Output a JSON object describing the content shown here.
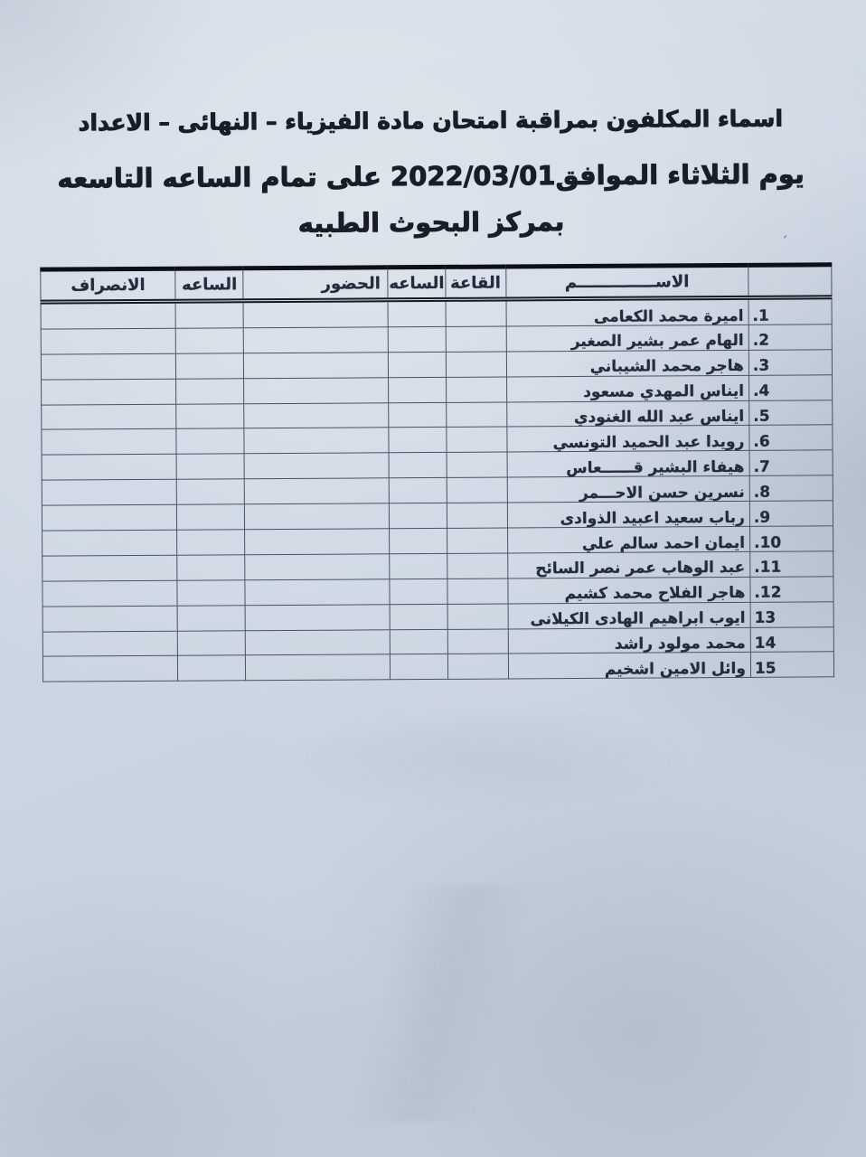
{
  "document": {
    "title_lines": [
      "اسماء المكلفون بمراقبة امتحان مادة الفيزياء – النهائى – الاعداد",
      "يوم الثلاثاء  الموافق2022/03/01 على تمام الساعه التاسعه",
      "بمركز البحوث الطبيه"
    ]
  },
  "table": {
    "headers": {
      "number": "",
      "name": "الاســــــــــــــم",
      "hall": "القاعة",
      "hour_in": "الساعه",
      "attendance": "الحضور",
      "hour_out": "الساعه",
      "departure": "الانصراف"
    },
    "rows": [
      {
        "num": "1.",
        "name": "اميرة محمد الكعامى"
      },
      {
        "num": "2.",
        "name": "الهام عمر بشير الصغير"
      },
      {
        "num": "3.",
        "name": "هاجر محمد الشيباني"
      },
      {
        "num": "4.",
        "name": "ايناس المهدي مسعود"
      },
      {
        "num": "5.",
        "name": "ايناس عبد الله الغنودي"
      },
      {
        "num": "6.",
        "name": "رويدا عبد الحميد التونسي"
      },
      {
        "num": "7.",
        "name": "هيفاء البشير قــــــعاس"
      },
      {
        "num": "8.",
        "name": "نسرين حسن الاحـــمر"
      },
      {
        "num": "9.",
        "name": "رباب سعيد اعبيد الذوادى"
      },
      {
        "num": "10.",
        "name": "ايمان احمد سالم علي"
      },
      {
        "num": "11.",
        "name": "عبد الوهاب عمر نصر السائح"
      },
      {
        "num": "12.",
        "name": "هاجر الفلاح محمد كشيم"
      },
      {
        "num": "13",
        "name": "ايوب ابراهيم الهادى الكيلانى"
      },
      {
        "num": "14",
        "name": "محمد مولود راشد"
      },
      {
        "num": "15",
        "name": "وائل الامين اشخيم"
      }
    ]
  },
  "artifact": {
    "ink_speck": "،"
  }
}
